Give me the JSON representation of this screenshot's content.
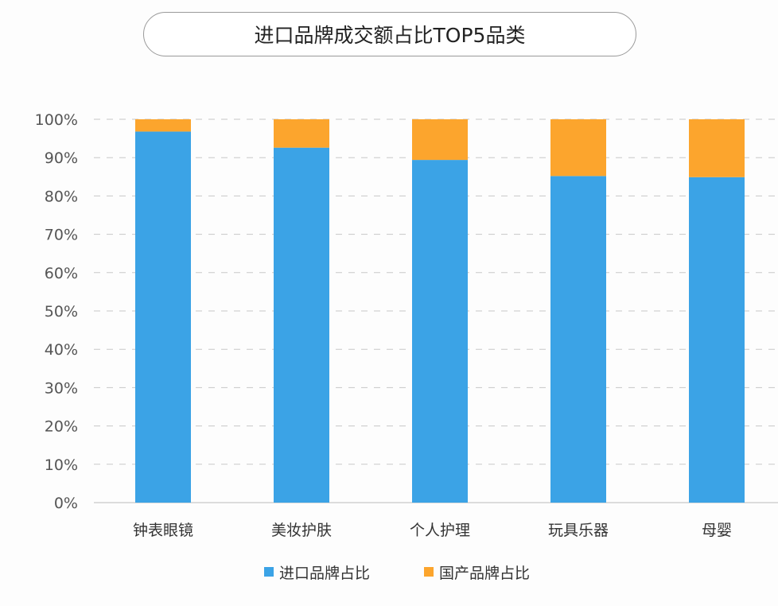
{
  "chart_data": {
    "type": "bar",
    "stacked": true,
    "title": "进口品牌成交额占比TOP5品类",
    "categories": [
      "钟表眼镜",
      "美妆护肤",
      "个人护理",
      "玩具乐器",
      "母婴"
    ],
    "series": [
      {
        "name": "进口品牌占比",
        "color": "#3ba3e6",
        "values": [
          96.8,
          92.6,
          89.4,
          85.2,
          84.9
        ]
      },
      {
        "name": "国产品牌占比",
        "color": "#fca52d",
        "values": [
          3.2,
          7.4,
          10.6,
          14.8,
          15.1
        ]
      }
    ],
    "yticks": [
      "0%",
      "10%",
      "20%",
      "30%",
      "40%",
      "50%",
      "60%",
      "70%",
      "80%",
      "90%",
      "100%"
    ],
    "ylim": [
      0,
      100
    ],
    "grid": true,
    "legend": "bottom"
  }
}
